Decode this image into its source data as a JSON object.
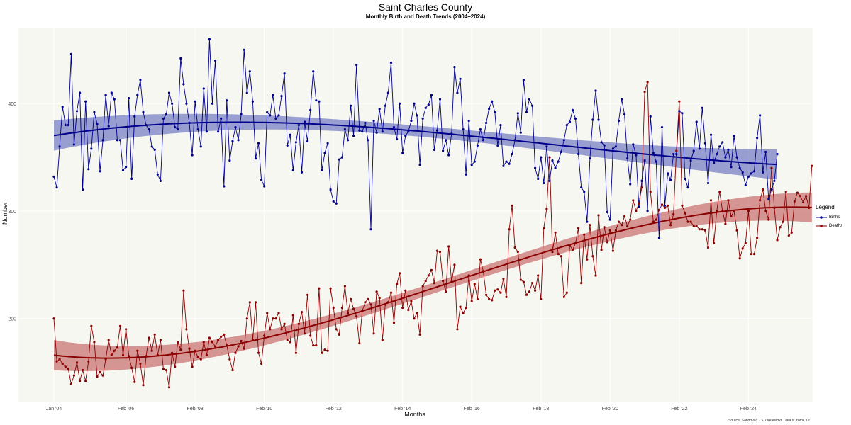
{
  "title": "Saint Charles County",
  "subtitle": "Monthly Birth and Death Trends (2004–2024)",
  "source": "Source: Sandoval, J.S. Orelesimo, Data is from CDC",
  "colors": {
    "births": "#00008b",
    "deaths": "#8b0000",
    "births_band": "#4a55b3",
    "deaths_band": "#b84545",
    "panel": "#f7f7f2",
    "grid": "#ffffff"
  },
  "chart_data": {
    "type": "line",
    "title": "Saint Charles County",
    "subtitle": "Monthly Birth and Death Trends (2004–2024)",
    "xlabel": "Months",
    "ylabel": "Number",
    "x_start": "Jan 2004",
    "n_months": 252,
    "ylim": [
      122,
      470
    ],
    "yticks": [
      200,
      300,
      400
    ],
    "xticks": [
      {
        "label": "Jan '04",
        "month_index": 0
      },
      {
        "label": "Feb '06",
        "month_index": 25
      },
      {
        "label": "Feb '08",
        "month_index": 49
      },
      {
        "label": "Feb '10",
        "month_index": 73
      },
      {
        "label": "Feb '12",
        "month_index": 97
      },
      {
        "label": "Feb '14",
        "month_index": 121
      },
      {
        "label": "Feb '16",
        "month_index": 145
      },
      {
        "label": "Feb '18",
        "month_index": 169
      },
      {
        "label": "Feb '20",
        "month_index": 193
      },
      {
        "label": "Feb '22",
        "month_index": 217
      },
      {
        "label": "Feb '24",
        "month_index": 241
      }
    ],
    "legend": {
      "title": "Legend",
      "position": "right"
    },
    "series": [
      {
        "name": "Births",
        "values": [
          332,
          322,
          360,
          397,
          380,
          380,
          446,
          362,
          393,
          410,
          320,
          402,
          339,
          358,
          392,
          381,
          337,
          366,
          408,
          379,
          410,
          404,
          366,
          366,
          338,
          341,
          405,
          330,
          388,
          408,
          422,
          392,
          380,
          376,
          360,
          357,
          334,
          328,
          386,
          390,
          410,
          400,
          378,
          376,
          442,
          418,
          400,
          382,
          352,
          402,
          376,
          360,
          414,
          374,
          460,
          400,
          440,
          374,
          386,
          323,
          403,
          347,
          365,
          378,
          366,
          390,
          450,
          410,
          430,
          402,
          349,
          363,
          329,
          323,
          392,
          389,
          408,
          386,
          389,
          407,
          428,
          361,
          371,
          338,
          364,
          380,
          336,
          383,
          365,
          394,
          430,
          403,
          402,
          338,
          354,
          363,
          320,
          309,
          307,
          348,
          350,
          376,
          366,
          398,
          370,
          436,
          375,
          374,
          382,
          366,
          283,
          384,
          373,
          395,
          374,
          398,
          410,
          438,
          378,
          367,
          400,
          354,
          370,
          374,
          384,
          400,
          389,
          343,
          386,
          396,
          399,
          408,
          357,
          375,
          404,
          356,
          366,
          352,
          372,
          434,
          410,
          423,
          376,
          334,
          384,
          343,
          346,
          361,
          376,
          366,
          382,
          395,
          402,
          392,
          361,
          380,
          342,
          346,
          344,
          353,
          366,
          391,
          373,
          422,
          392,
          404,
          398,
          340,
          330,
          350,
          326,
          360,
          328,
          347,
          340,
          346,
          355,
          366,
          380,
          383,
          394,
          386,
          353,
          322,
          318,
          290,
          349,
          385,
          412,
          385,
          364,
          361,
          299,
          292,
          358,
          360,
          384,
          404,
          390,
          349,
          325,
          362,
          352,
          304,
          328,
          347,
          300,
          388,
          354,
          346,
          275,
          378,
          305,
          335,
          329,
          353,
          353,
          393,
          391,
          330,
          322,
          347,
          356,
          383,
          358,
          396,
          363,
          326,
          371,
          345,
          353,
          360,
          364,
          350,
          357,
          341,
          370,
          350,
          340,
          336,
          324,
          332,
          335,
          337,
          368,
          389,
          336,
          355,
          311,
          320,
          328,
          353
        ]
      },
      {
        "name": "Deaths",
        "values": [
          200,
          160,
          162,
          158,
          155,
          153,
          139,
          147,
          159,
          142,
          152,
          142,
          160,
          193,
          178,
          146,
          150,
          147,
          162,
          180,
          166,
          170,
          173,
          193,
          166,
          190,
          165,
          154,
          141,
          170,
          158,
          138,
          165,
          182,
          170,
          185,
          166,
          180,
          153,
          152,
          136,
          168,
          155,
          178,
          171,
          226,
          190,
          172,
          155,
          170,
          164,
          162,
          178,
          166,
          182,
          178,
          174,
          180,
          183,
          185,
          175,
          162,
          152,
          168,
          174,
          179,
          172,
          200,
          215,
          180,
          215,
          168,
          158,
          184,
          205,
          190,
          200,
          200,
          205,
          190,
          195,
          180,
          178,
          203,
          168,
          195,
          206,
          186,
          222,
          184,
          175,
          175,
          228,
          168,
          171,
          170,
          228,
          210,
          190,
          185,
          210,
          230,
          205,
          218,
          209,
          202,
          177,
          207,
          215,
          218,
          213,
          186,
          225,
          219,
          180,
          213,
          215,
          224,
          196,
          232,
          242,
          210,
          226,
          208,
          216,
          200,
          205,
          185,
          230,
          235,
          240,
          245,
          233,
          263,
          262,
          235,
          225,
          267,
          234,
          250,
          190,
          211,
          205,
          210,
          240,
          216,
          232,
          218,
          255,
          244,
          222,
          218,
          217,
          226,
          227,
          224,
          237,
          220,
          283,
          305,
          266,
          262,
          236,
          234,
          222,
          225,
          233,
          226,
          240,
          218,
          284,
          302,
          350,
          262,
          280,
          260,
          258,
          220,
          224,
          268,
          264,
          270,
          284,
          233,
          278,
          255,
          287,
          258,
          240,
          296,
          264,
          285,
          271,
          282,
          263,
          282,
          290,
          287,
          295,
          286,
          292,
          310,
          300,
          307,
          322,
          411,
          420,
          318,
          290,
          292,
          301,
          306,
          303,
          305,
          287,
          297,
          356,
          402,
          305,
          298,
          290,
          290,
          286,
          286,
          283,
          283,
          282,
          266,
          310,
          270,
          300,
          318,
          300,
          288,
          310,
          295,
          300,
          282,
          256,
          265,
          270,
          300,
          260,
          260,
          275,
          310,
          320,
          300,
          292,
          340,
          303,
          273,
          285,
          290,
          318,
          277,
          280,
          309,
          317,
          314,
          308,
          314,
          303,
          342
        ]
      }
    ]
  }
}
